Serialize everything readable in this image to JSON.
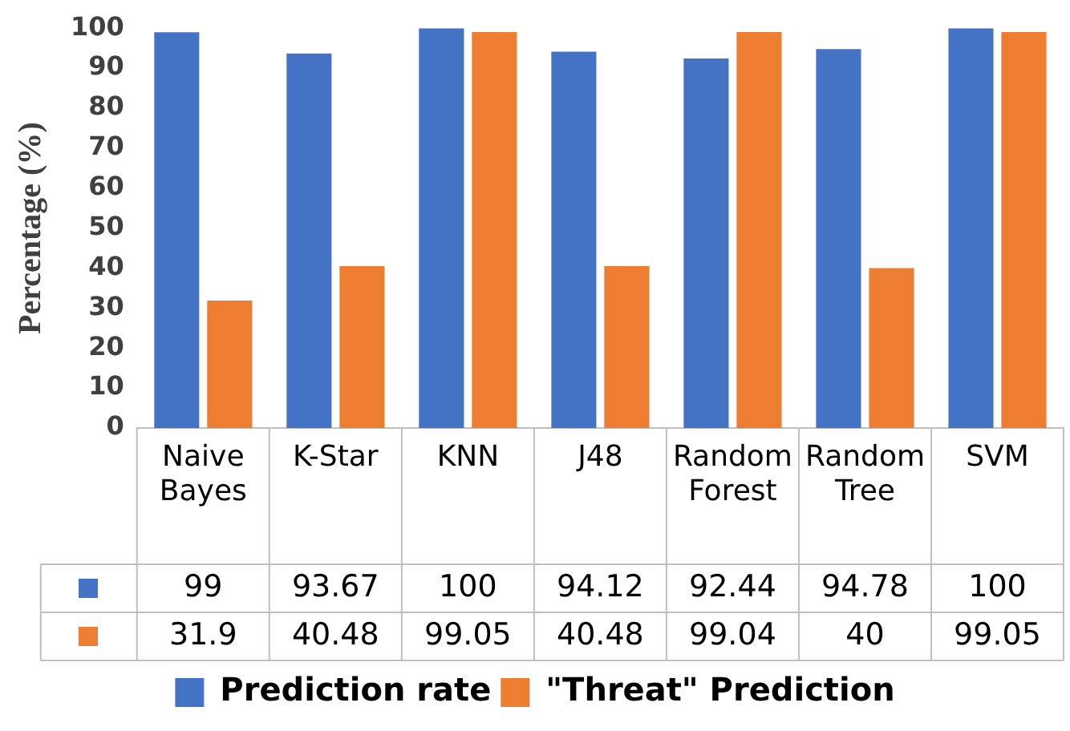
{
  "chart_data": {
    "type": "bar",
    "ylabel": "Percentage (%)",
    "categories": [
      "Naive Bayes",
      "K-Star",
      "KNN",
      "J48",
      "Random Forest",
      "Random Tree",
      "SVM"
    ],
    "series": [
      {
        "name": "Prediction rate",
        "color": "#4472c4",
        "values": [
          99,
          93.67,
          100,
          94.12,
          92.44,
          94.78,
          100
        ]
      },
      {
        "name": "\"Threat\" Prediction",
        "color": "#ed7d31",
        "values": [
          31.9,
          40.48,
          99.05,
          40.48,
          99.04,
          40,
          99.05
        ]
      }
    ],
    "ylim": [
      0,
      100
    ],
    "yticks": [
      0,
      10,
      20,
      30,
      40,
      50,
      60,
      70,
      80,
      90,
      100
    ],
    "grid": false,
    "legend": "bottom",
    "data_labels": true
  }
}
